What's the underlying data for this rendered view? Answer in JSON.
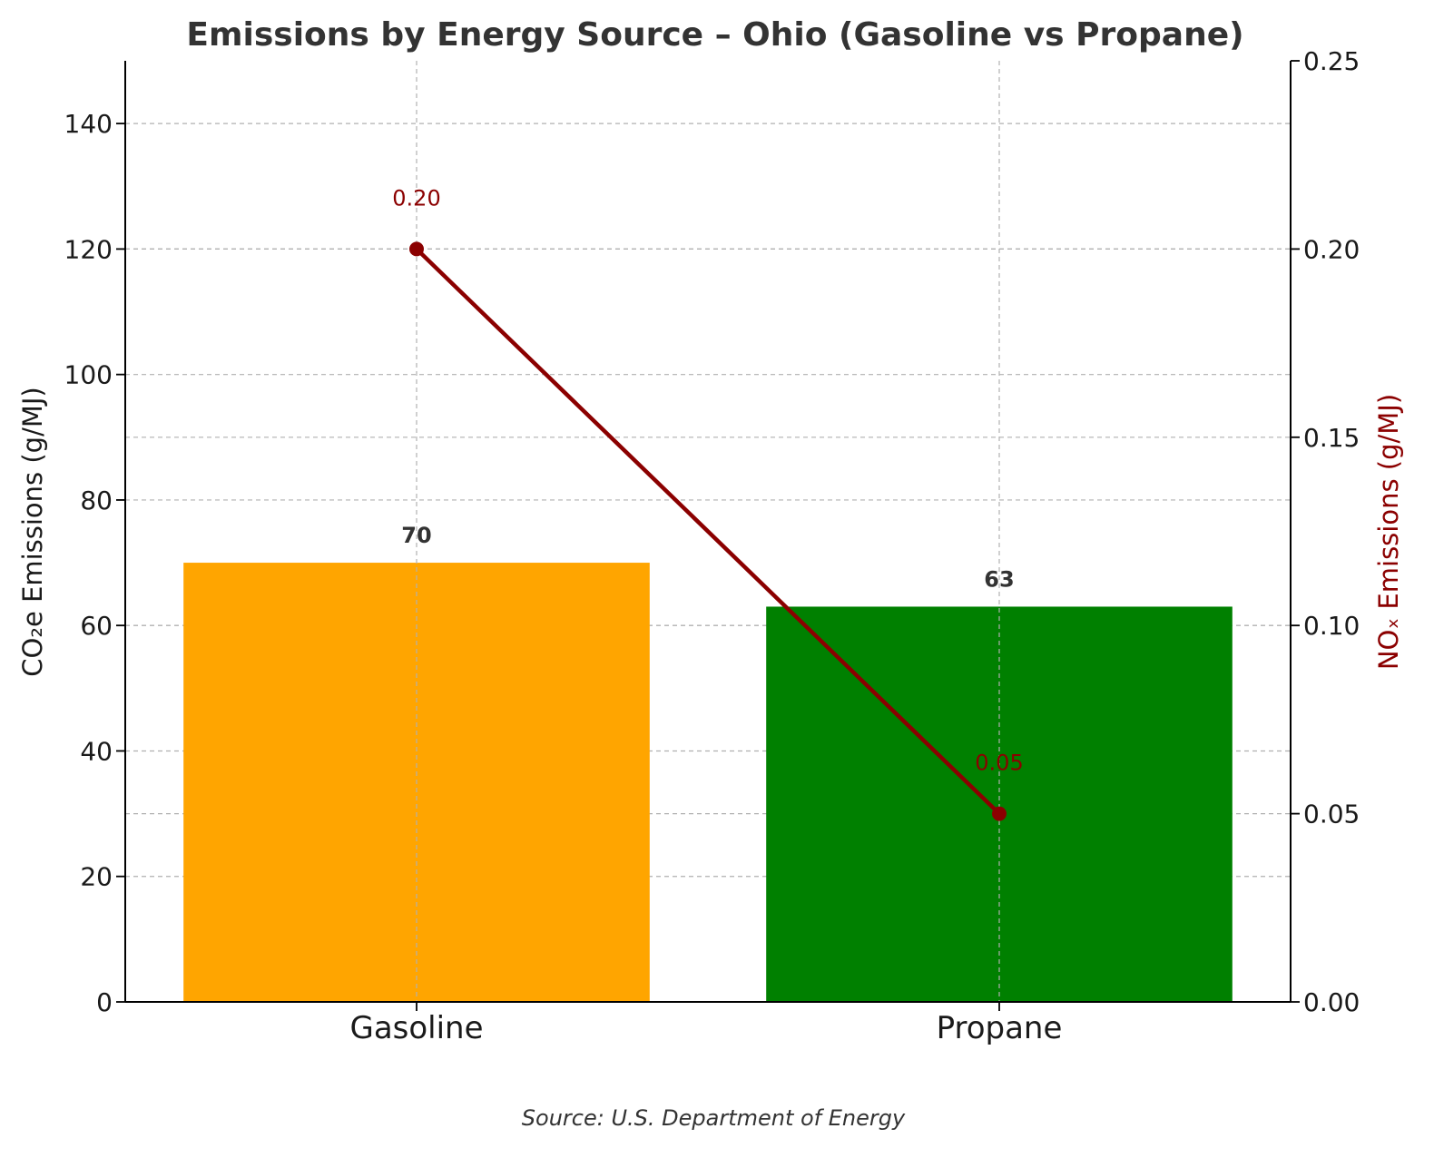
{
  "chart_data": {
    "type": "bar",
    "title": "Emissions by Energy Source – Ohio (Gasoline vs Propane)",
    "categories": [
      "Gasoline",
      "Propane"
    ],
    "series": [
      {
        "name": "CO₂e Emissions (g/MJ)",
        "type": "bar",
        "axis": "left",
        "values": [
          70,
          63
        ],
        "value_labels": [
          "70",
          "63"
        ],
        "colors": [
          "#FFA500",
          "#008000"
        ]
      },
      {
        "name": "NOₓ Emissions (g/MJ)",
        "type": "line",
        "axis": "right",
        "values": [
          0.2,
          0.05
        ],
        "value_labels": [
          "0.20",
          "0.05"
        ],
        "color": "#8B0000"
      }
    ],
    "ylabel": "CO₂e Emissions (g/MJ)",
    "y2label": "NOₓ Emissions (g/MJ)",
    "ylim": [
      0,
      150
    ],
    "y2lim": [
      0,
      0.25
    ],
    "yticks": [
      "0",
      "20",
      "40",
      "60",
      "80",
      "100",
      "120",
      "140"
    ],
    "y2ticks": [
      "0.00",
      "0.05",
      "0.10",
      "0.15",
      "0.20",
      "0.25"
    ],
    "grid": true,
    "source": "Source: U.S. Department of Energy"
  }
}
